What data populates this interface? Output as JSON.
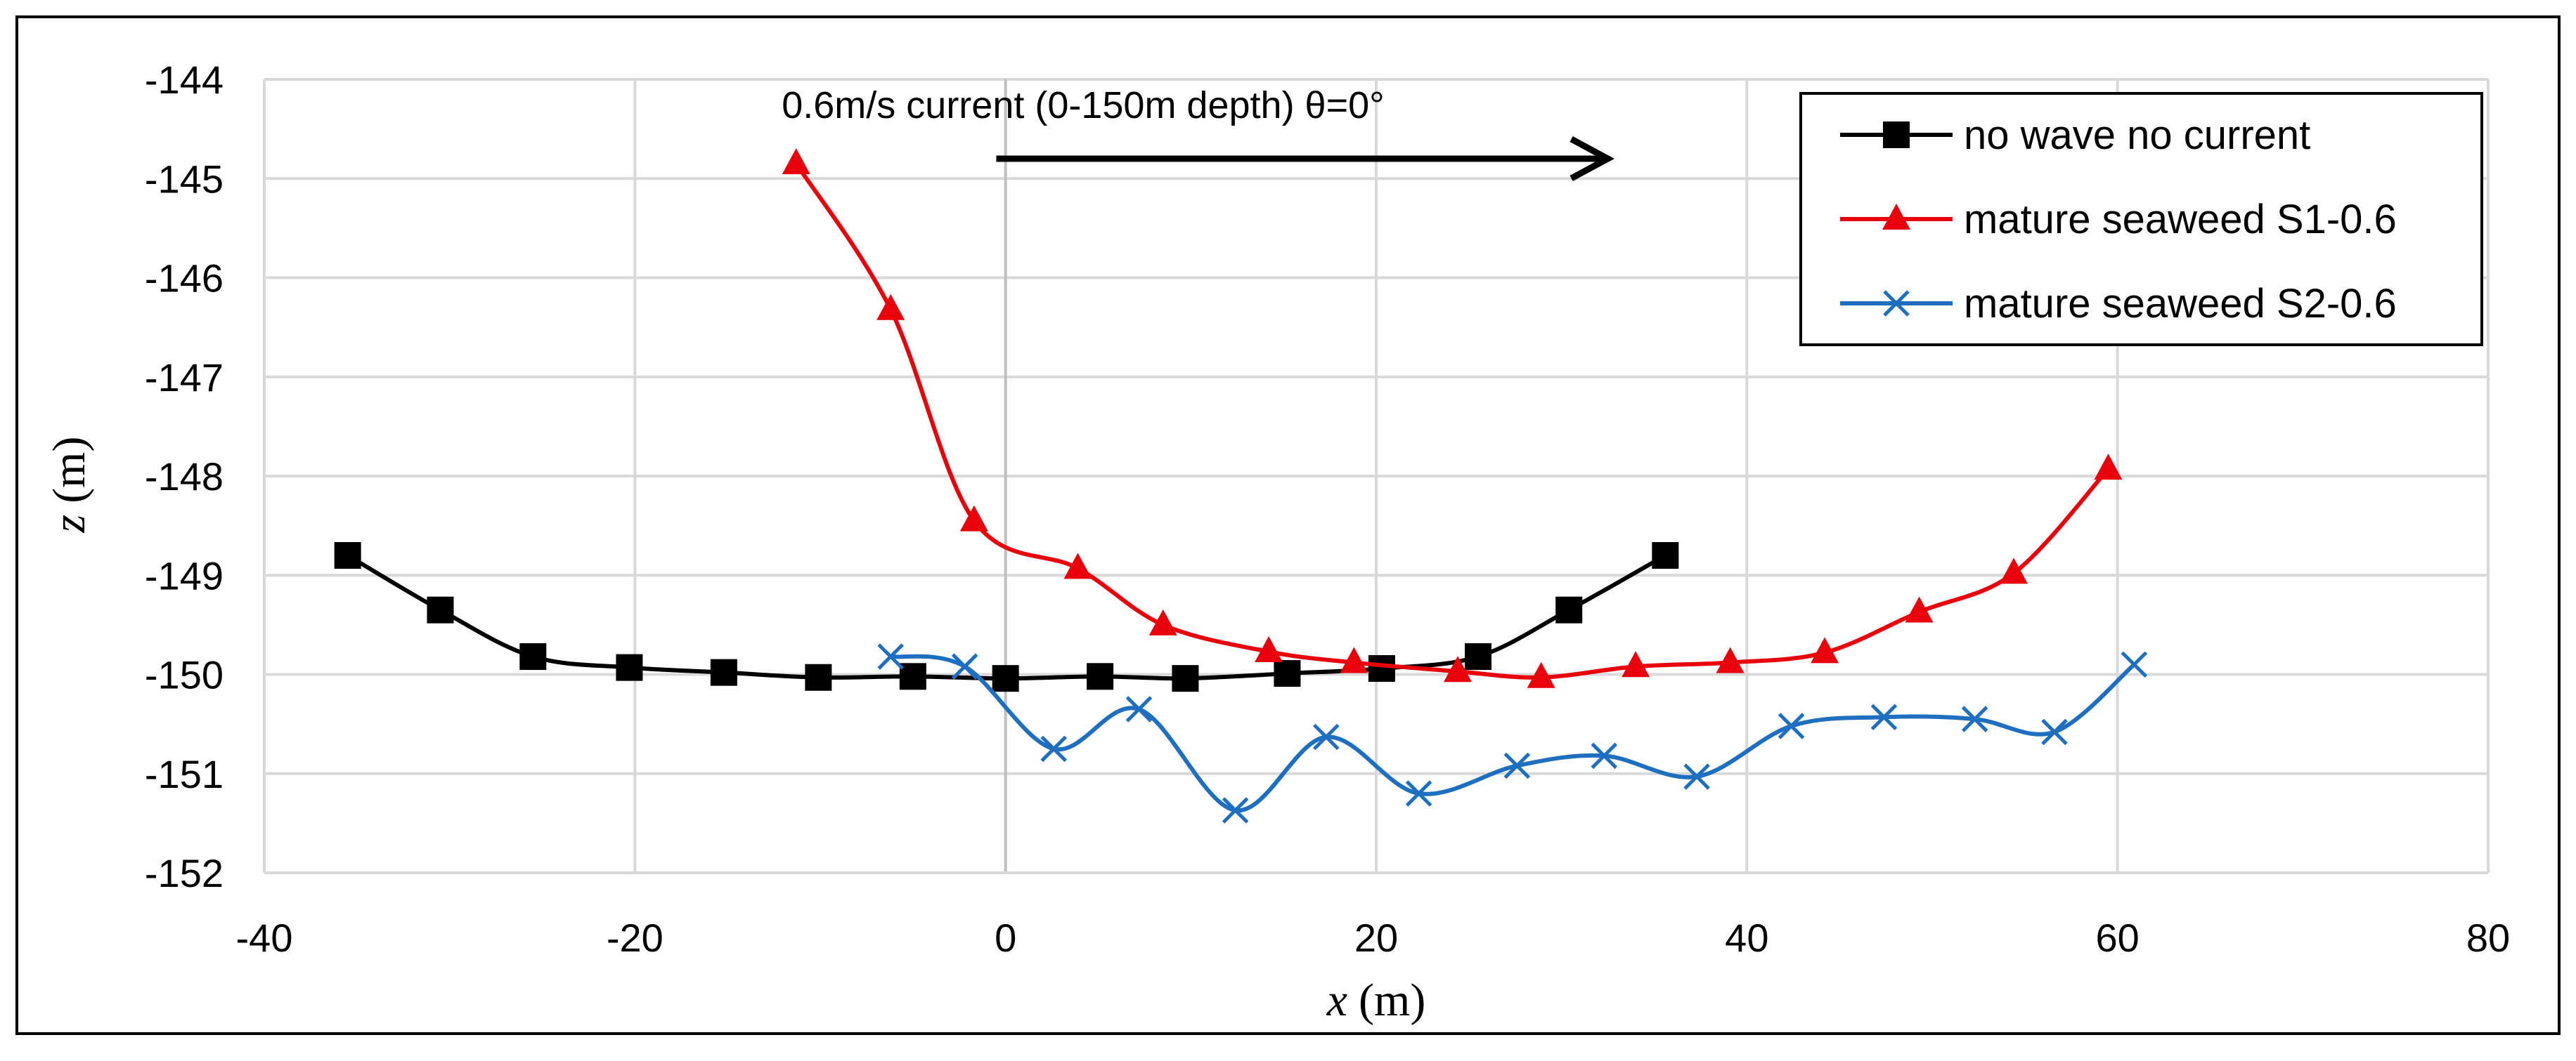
{
  "chart_data": {
    "type": "line",
    "title": "",
    "xlabel_var": "x",
    "xlabel_unit": "(m)",
    "ylabel_var": "z",
    "ylabel_unit": "(m)",
    "xlim": [
      -40,
      80
    ],
    "ylim": [
      -152,
      -144
    ],
    "xticks": [
      -40,
      -20,
      0,
      20,
      40,
      60,
      80
    ],
    "yticks": [
      -152,
      -151,
      -150,
      -149,
      -148,
      -147,
      -146,
      -145,
      -144
    ],
    "grid": true,
    "legend_position": "top-right",
    "annotation": "0.6m/s current (0-150m depth) θ=0°",
    "annotation_arrow": {
      "x_start": -0.5,
      "x_end": 32.5,
      "y": -144.8
    },
    "colors": {
      "black": "#000000",
      "red": "#e8000b",
      "blue": "#1f6fc0",
      "grid": "#d9d9d9"
    },
    "series": [
      {
        "name": "no wave no current",
        "color": "#000000",
        "marker": "square",
        "x": [
          -35.5,
          -30.5,
          -25.5,
          -20.3,
          -15.2,
          -10.1,
          -5.0,
          0.0,
          5.1,
          9.7,
          15.2,
          20.3,
          25.5,
          30.4,
          35.6
        ],
        "y": [
          -148.8,
          -149.35,
          -149.82,
          -149.93,
          -149.98,
          -150.03,
          -150.02,
          -150.04,
          -150.02,
          -150.04,
          -149.99,
          -149.94,
          -149.82,
          -149.35,
          -148.8
        ]
      },
      {
        "name": "mature seaweed S1-0.6",
        "color": "#e8000b",
        "marker": "triangle",
        "x": [
          -11.3,
          -6.2,
          -1.7,
          3.9,
          8.5,
          14.2,
          18.8,
          24.4,
          28.9,
          34.0,
          39.1,
          44.2,
          49.3,
          54.4,
          59.5
        ],
        "y": [
          -144.85,
          -146.32,
          -148.45,
          -148.93,
          -149.5,
          -149.77,
          -149.88,
          -149.97,
          -150.03,
          -149.92,
          -149.88,
          -149.78,
          -149.37,
          -148.98,
          -147.93
        ]
      },
      {
        "name": "mature seaweed S2-0.6",
        "color": "#1f6fc0",
        "marker": "x",
        "x": [
          -6.2,
          -2.2,
          2.6,
          7.2,
          12.4,
          17.3,
          22.3,
          27.6,
          32.3,
          37.3,
          42.4,
          47.4,
          52.3,
          56.6,
          60.9
        ],
        "y": [
          -149.82,
          -149.92,
          -150.75,
          -150.35,
          -151.37,
          -150.63,
          -151.2,
          -150.92,
          -150.82,
          -151.03,
          -150.52,
          -150.43,
          -150.45,
          -150.58,
          -149.9
        ]
      }
    ]
  }
}
